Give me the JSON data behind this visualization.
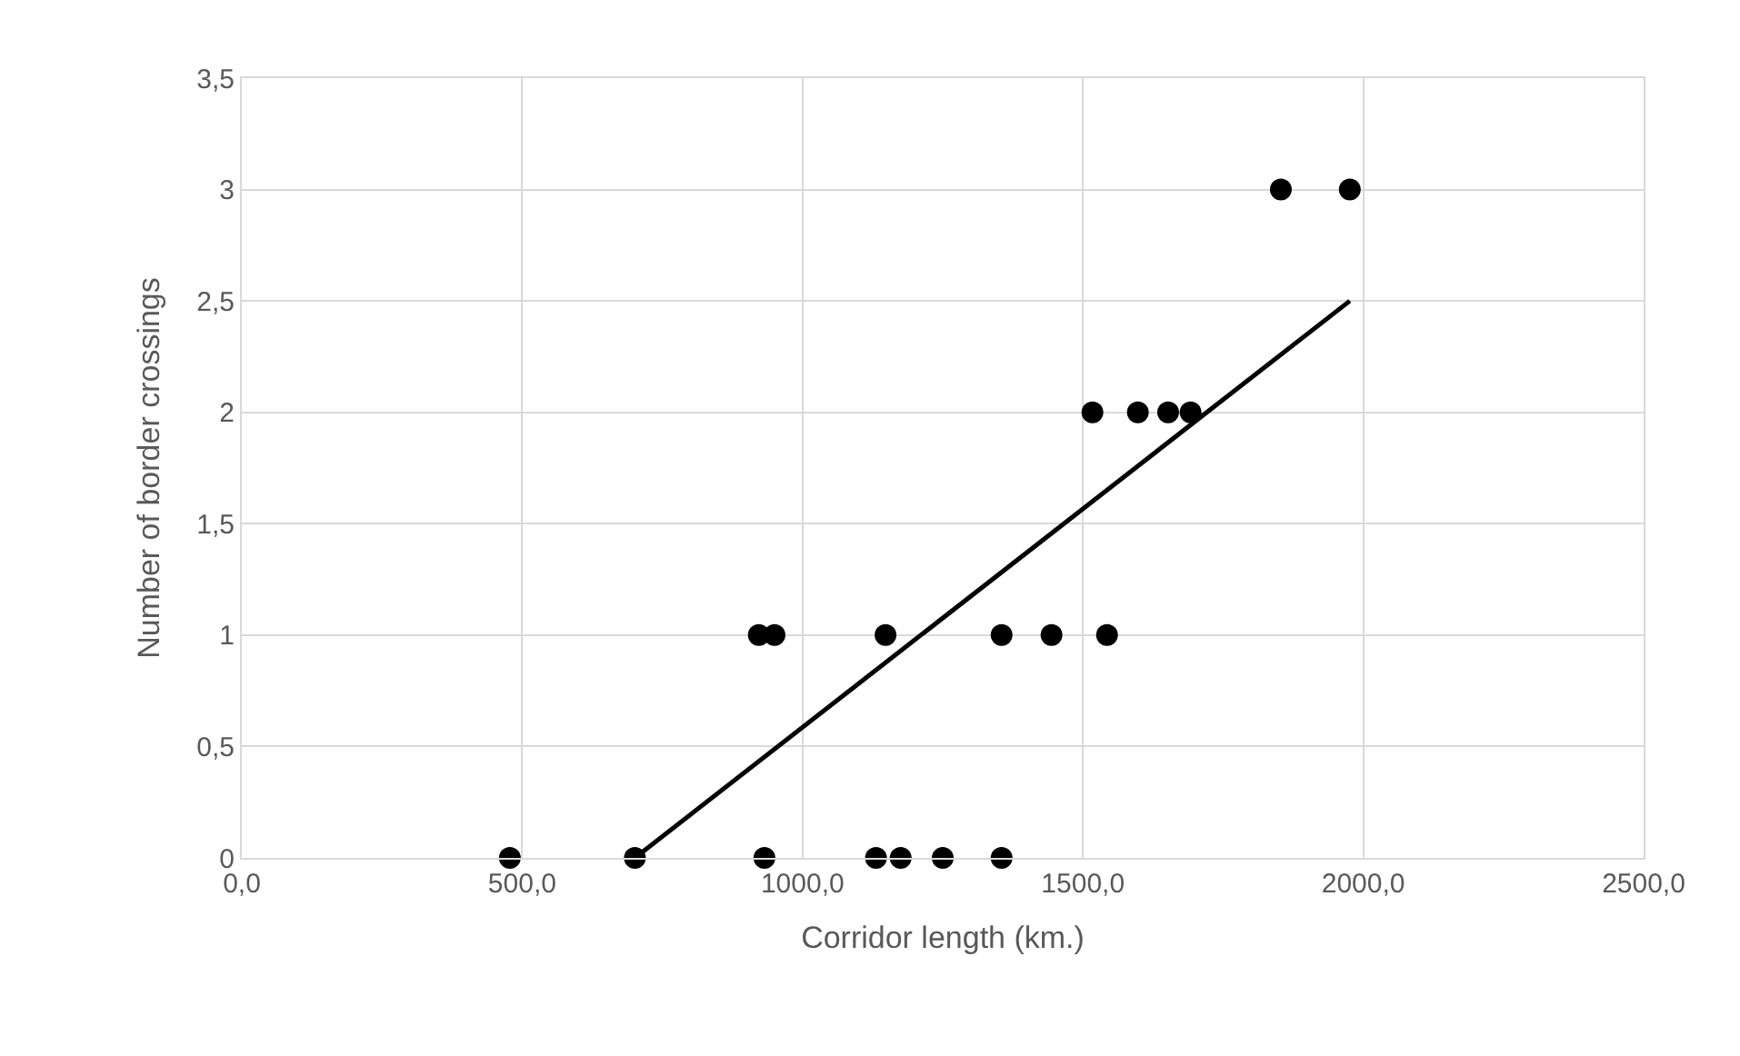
{
  "chart_data": {
    "type": "scatter",
    "xlabel": "Corridor length (km.)",
    "ylabel": "Number of border crossings",
    "series": [
      {
        "color": "#000000",
        "marker": "circle",
        "x": [
          478,
          701,
          932,
          922,
          950,
          1148,
          1131,
          1175,
          1250,
          1355,
          1355,
          1444,
          1543,
          1517,
          1598,
          1652,
          1692,
          1853,
          1976
        ],
        "values": [
          0,
          0,
          0,
          1,
          1,
          1,
          0,
          0,
          0,
          0,
          1,
          1,
          1,
          2,
          2,
          2,
          2,
          3,
          3
        ]
      },
      {
        "type": "line",
        "color": "#000000",
        "marker": "none",
        "line_style": "solid",
        "x": [
          701,
          1976
        ],
        "values": [
          0,
          2.5
        ]
      }
    ],
    "xlim": [
      0,
      2500
    ],
    "xticks": [
      {
        "value": 0,
        "label": "0,0"
      },
      {
        "value": 500,
        "label": "500,0"
      },
      {
        "value": 1000,
        "label": "1000,0"
      },
      {
        "value": 1500,
        "label": "1500,0"
      },
      {
        "value": 2000,
        "label": "2000,0"
      },
      {
        "value": 2500,
        "label": "2500,0"
      }
    ],
    "ylim": [
      0,
      3.5
    ],
    "yticks": [
      0,
      {
        "value": 0.5,
        "label": "0,5"
      },
      1,
      {
        "value": 1.5,
        "label": "1,5"
      },
      2,
      {
        "value": 2.5,
        "label": "2,5"
      },
      3,
      {
        "value": 3.5,
        "label": "3,5"
      }
    ],
    "grid": true
  }
}
